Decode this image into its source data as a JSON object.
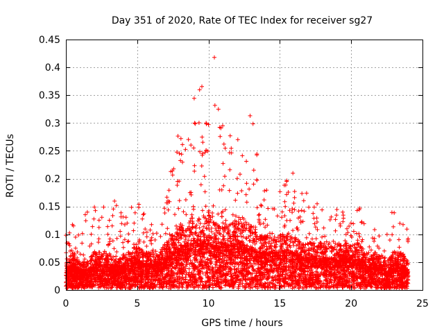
{
  "chart_data": {
    "type": "scatter",
    "title": "Day 351 of 2020, Rate Of TEC Index for receiver sg27",
    "xlabel": "GPS time / hours",
    "ylabel": "ROTI / TECUs",
    "xlim": [
      0,
      25
    ],
    "ylim": [
      0,
      0.45
    ],
    "xticks": [
      0,
      5,
      10,
      15,
      20,
      25
    ],
    "yticks": [
      0,
      0.05,
      0.1,
      0.15,
      0.2,
      0.25,
      0.3,
      0.35,
      0.4,
      0.45
    ],
    "grid": true,
    "marker": "+",
    "color": "#ff0000",
    "series": [
      {
        "name": "ROTI",
        "x_range": [
          0,
          24
        ],
        "envelope": {
          "x": [
            0,
            0.5,
            1,
            1.5,
            2,
            2.5,
            3,
            3.5,
            4,
            4.5,
            5,
            5.5,
            6,
            6.5,
            7,
            7.5,
            8,
            8.5,
            9,
            9.5,
            10,
            10.5,
            11,
            11.5,
            12,
            12.5,
            13,
            13.5,
            14,
            14.5,
            15,
            15.5,
            16,
            16.5,
            17,
            17.5,
            18,
            18.5,
            19,
            19.5,
            20,
            20.5,
            21,
            21.5,
            22,
            22.5,
            23,
            23.5,
            24
          ],
          "median": [
            0.03,
            0.04,
            0.03,
            0.03,
            0.04,
            0.04,
            0.04,
            0.03,
            0.04,
            0.04,
            0.05,
            0.04,
            0.04,
            0.04,
            0.05,
            0.06,
            0.07,
            0.07,
            0.08,
            0.08,
            0.08,
            0.07,
            0.08,
            0.07,
            0.08,
            0.07,
            0.07,
            0.06,
            0.06,
            0.06,
            0.06,
            0.06,
            0.06,
            0.05,
            0.05,
            0.05,
            0.05,
            0.05,
            0.05,
            0.05,
            0.05,
            0.05,
            0.04,
            0.04,
            0.04,
            0.03,
            0.04,
            0.04,
            0.03
          ],
          "peak": [
            0.1,
            0.12,
            0.1,
            0.14,
            0.15,
            0.15,
            0.13,
            0.16,
            0.14,
            0.15,
            0.16,
            0.14,
            0.12,
            0.1,
            0.16,
            0.22,
            0.28,
            0.26,
            0.35,
            0.38,
            0.3,
            0.42,
            0.3,
            0.28,
            0.28,
            0.25,
            0.32,
            0.25,
            0.18,
            0.15,
            0.18,
            0.2,
            0.21,
            0.18,
            0.18,
            0.16,
            0.15,
            0.13,
            0.15,
            0.14,
            0.12,
            0.15,
            0.12,
            0.11,
            0.1,
            0.1,
            0.14,
            0.12,
            0.11
          ]
        }
      }
    ]
  }
}
